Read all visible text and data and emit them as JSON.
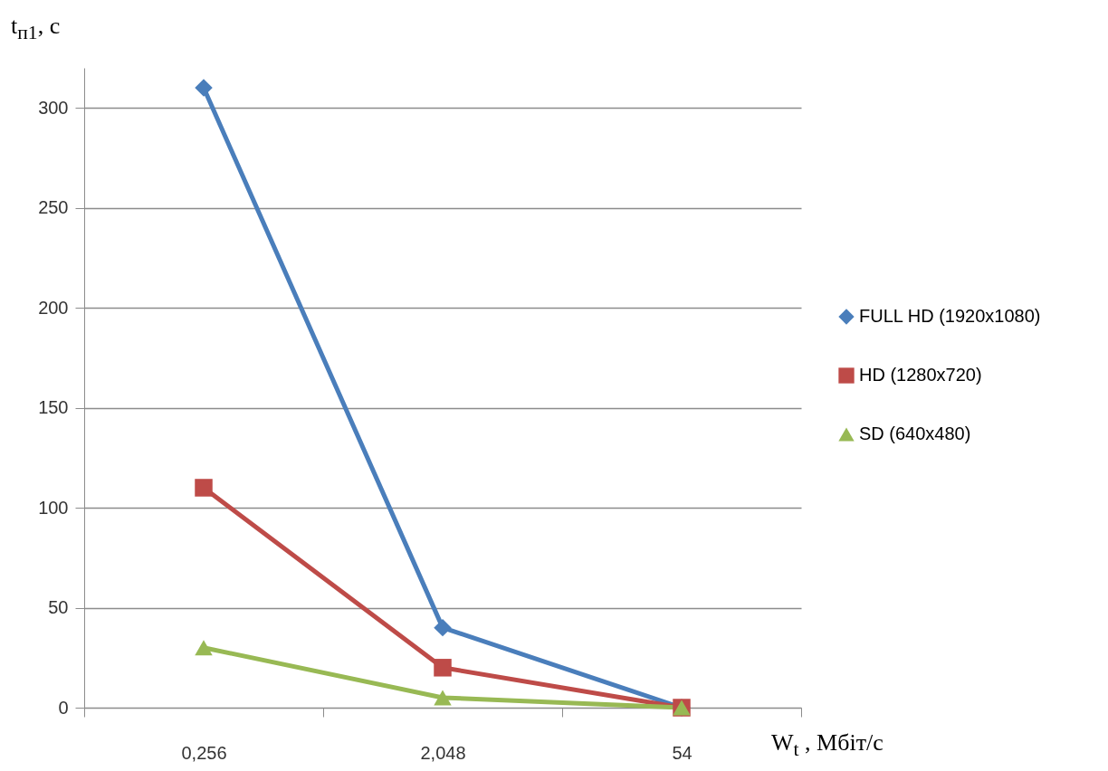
{
  "chart_data": {
    "type": "line",
    "xlabel": "W$_{t}$ , Мбіт/с",
    "ylabel": "t$_{п1}$, с",
    "categories": [
      "0,256",
      "2,048",
      "54"
    ],
    "series": [
      {
        "name": "FULL HD (1920x1080)",
        "color": "#4a7ebb",
        "marker": "diamond",
        "values": [
          310,
          40,
          0
        ]
      },
      {
        "name": "HD (1280x720)",
        "color": "#be4b48",
        "marker": "square",
        "values": [
          110,
          20,
          0
        ]
      },
      {
        "name": "SD (640x480)",
        "color": "#98b954",
        "marker": "triangle",
        "values": [
          30,
          5,
          0
        ]
      }
    ],
    "ylim": [
      0,
      320
    ],
    "yticks": [
      0,
      50,
      100,
      150,
      200,
      250,
      300
    ],
    "grid": "y",
    "legend": "right",
    "line_style": "solid"
  }
}
